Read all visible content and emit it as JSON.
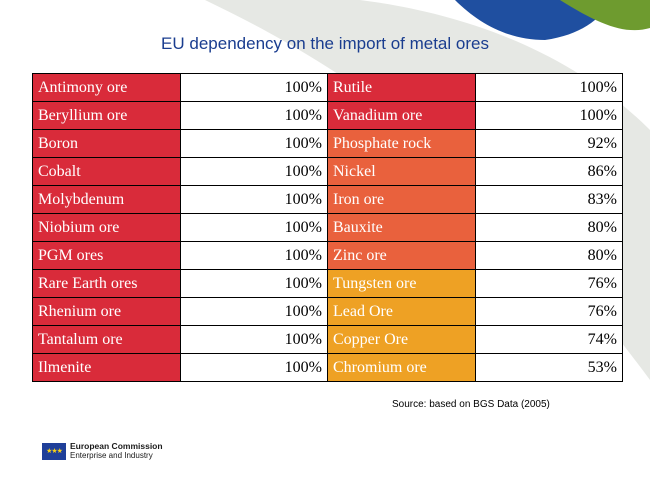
{
  "slide": {
    "title": "EU dependency on the import of metal ores",
    "source": "Source: based on BGS Data (2005)"
  },
  "colors": {
    "red": "#d92b3a",
    "orange_red": "#e9613d",
    "orange": "#eea124",
    "header_green": "#6e9b2f",
    "header_blue": "#1f4fa0",
    "swoosh_gray": "#e6e8e4"
  },
  "rows": [
    {
      "left_name": "Antimony ore",
      "left_pct": "100%",
      "right_name": "Rutile",
      "right_pct": "100%"
    },
    {
      "left_name": "Beryllium ore",
      "left_pct": "100%",
      "right_name": "Vanadium ore",
      "right_pct": "100%"
    },
    {
      "left_name": "Boron",
      "left_pct": "100%",
      "right_name": "Phosphate rock",
      "right_pct": "92%"
    },
    {
      "left_name": "Cobalt",
      "left_pct": "100%",
      "right_name": "Nickel",
      "right_pct": "86%"
    },
    {
      "left_name": "Molybdenum",
      "left_pct": "100%",
      "right_name": "Iron ore",
      "right_pct": "83%"
    },
    {
      "left_name": "Niobium ore",
      "left_pct": "100%",
      "right_name": "Bauxite",
      "right_pct": "80%"
    },
    {
      "left_name": "PGM ores",
      "left_pct": "100%",
      "right_name": "Zinc ore",
      "right_pct": "80%"
    },
    {
      "left_name": "Rare Earth ores",
      "left_pct": "100%",
      "right_name": "Tungsten ore",
      "right_pct": "76%"
    },
    {
      "left_name": "Rhenium ore",
      "left_pct": "100%",
      "right_name": "Lead Ore",
      "right_pct": "76%"
    },
    {
      "left_name": "Tantalum ore",
      "left_pct": "100%",
      "right_name": "Copper Ore",
      "right_pct": "74%"
    },
    {
      "left_name": "Ilmenite",
      "left_pct": "100%",
      "right_name": "Chromium ore",
      "right_pct": "53%"
    }
  ],
  "logo": {
    "main": "European Commission",
    "sub": "Enterprise and Industry",
    "icon": "eu-flag-icon"
  }
}
